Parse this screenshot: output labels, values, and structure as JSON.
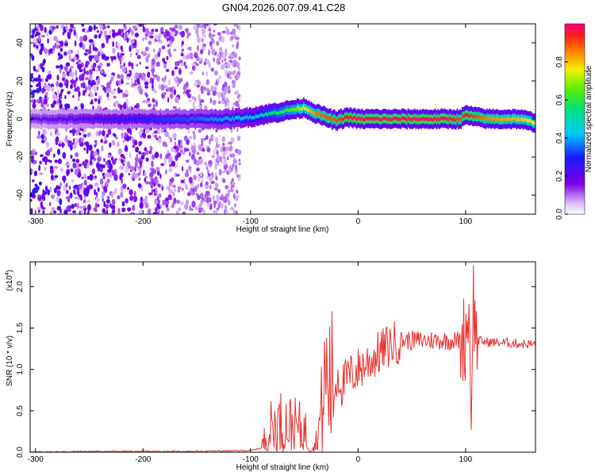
{
  "figure": {
    "title": "GN04.2026.007.09.41.C28"
  },
  "chart_data": [
    {
      "type": "heatmap",
      "title": "",
      "xlabel": "Height of straight line (km)",
      "ylabel": "Frequency (Hz)",
      "xlim": [
        -305,
        165
      ],
      "ylim": [
        -50,
        50
      ],
      "x_ticks": [
        -300,
        -200,
        -100,
        0,
        100
      ],
      "x_tick_labels": [
        "-300",
        "-200",
        "-100",
        "0",
        "100"
      ],
      "y_ticks": [
        -40,
        -20,
        0,
        20,
        40
      ],
      "y_tick_labels": [
        "-40",
        "-20",
        "0",
        "20",
        "40"
      ],
      "colorbar": {
        "label": "Normalized spectral amplitude",
        "range": [
          0,
          1
        ],
        "ticks": [
          0.0,
          0.2,
          0.4,
          0.6,
          0.8
        ],
        "tick_labels": [
          "0.0",
          "0.2",
          "0.4",
          "0.6",
          "0.8"
        ],
        "colormap": "rainbow (white-purple-blue-cyan-green-yellow-red-magenta)"
      },
      "ridge": {
        "description": "central frequency ridge",
        "x": [
          -305,
          -250,
          -200,
          -150,
          -120,
          -100,
          -80,
          -60,
          -50,
          -40,
          -30,
          -20,
          -10,
          0,
          20,
          50,
          80,
          95,
          100,
          120,
          150,
          165
        ],
        "freq": [
          0,
          0,
          0,
          0,
          0,
          1,
          3,
          5,
          6,
          3,
          1,
          -1,
          1,
          0,
          0,
          0,
          0,
          0,
          2,
          0,
          0,
          -2
        ],
        "amplitude": [
          0.2,
          0.25,
          0.3,
          0.35,
          0.4,
          0.45,
          0.55,
          0.65,
          0.75,
          0.85,
          0.9,
          0.9,
          0.95,
          0.98,
          0.98,
          0.98,
          0.98,
          0.9,
          0.95,
          0.85,
          0.8,
          0.75
        ]
      },
      "noise_region": {
        "x_range": [
          -305,
          -110
        ],
        "freq_range": [
          -50,
          50
        ]
      }
    },
    {
      "type": "line",
      "title": "",
      "xlabel": "Height of straight line (km)",
      "ylabel": "SNR (10 * v/v)",
      "y_multiplier": "(x10",
      "y_multiplier_exp": "4",
      "y_multiplier_close": ")",
      "xlim": [
        -305,
        165
      ],
      "ylim": [
        0,
        2.3
      ],
      "x_ticks": [
        -300,
        -200,
        -100,
        0,
        100
      ],
      "x_tick_labels": [
        "-300",
        "-200",
        "-100",
        "0",
        "100"
      ],
      "y_ticks": [
        0.0,
        0.5,
        1.0,
        1.5,
        2.0
      ],
      "y_tick_labels": [
        "0.0",
        "0.5",
        "1.0",
        "1.5",
        "2.0"
      ],
      "series": [
        {
          "color": "#e8312f",
          "x": [
            -305,
            -250,
            -200,
            -150,
            -100,
            -90,
            -85,
            -80,
            -70,
            -60,
            -50,
            -40,
            -35,
            -30,
            -25,
            -20,
            -15,
            -10,
            0,
            10,
            20,
            30,
            40,
            60,
            80,
            95,
            100,
            103,
            105,
            107,
            110,
            120,
            140,
            165
          ],
          "y": [
            0.0,
            0.01,
            0.01,
            0.01,
            0.02,
            0.05,
            0.2,
            0.3,
            0.35,
            0.3,
            0.25,
            0.05,
            0.4,
            0.9,
            0.8,
            1.0,
            0.8,
            0.9,
            1.0,
            1.1,
            1.2,
            1.3,
            1.35,
            1.35,
            1.35,
            1.35,
            1.4,
            1.8,
            0.5,
            1.9,
            1.35,
            1.33,
            1.32,
            1.3
          ]
        }
      ]
    }
  ]
}
